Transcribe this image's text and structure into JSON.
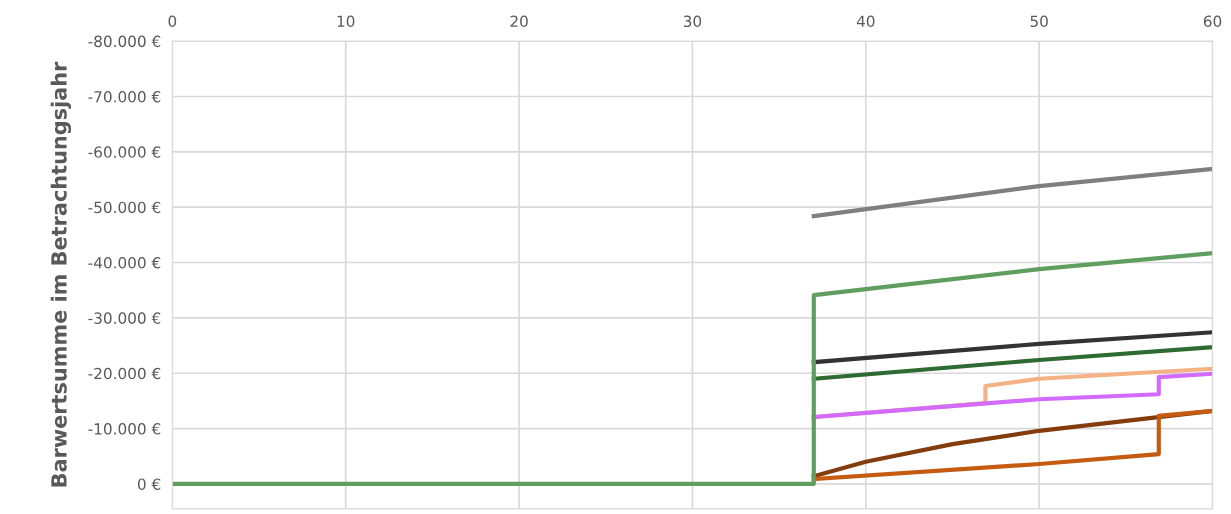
{
  "chart_data": {
    "type": "line",
    "ylabel": "Barwertsumme im Betrachtungsjahr",
    "xlim": [
      0,
      60
    ],
    "xticks": [
      0,
      10,
      20,
      30,
      40,
      50,
      60
    ],
    "ylim": [
      4500,
      -80000
    ],
    "yticks": [
      {
        "value": 0,
        "label": "0 €"
      },
      {
        "value": -10000,
        "label": "-10.000 €"
      },
      {
        "value": -20000,
        "label": "-20.000 €"
      },
      {
        "value": -30000,
        "label": "-30.000 €"
      },
      {
        "value": -40000,
        "label": "-40.000 €"
      },
      {
        "value": -50000,
        "label": "-50.000 €"
      },
      {
        "value": -60000,
        "label": "-60.000 €"
      },
      {
        "value": -70000,
        "label": "-70.000 €"
      },
      {
        "value": -80000,
        "label": "-80.000 €"
      }
    ],
    "grid": true,
    "line_style": "solid",
    "series": [
      {
        "color": "#7f7f7f",
        "x": [
          37,
          50,
          60
        ],
        "values": [
          -48400,
          -53800,
          -56900
        ]
      },
      {
        "color": "#333333",
        "x": [
          37,
          50,
          60
        ],
        "values": [
          -22000,
          -25300,
          -27400
        ]
      },
      {
        "color": "#2e6b33",
        "x": [
          37,
          50,
          60
        ],
        "values": [
          -19000,
          -22400,
          -24700
        ]
      },
      {
        "color": "#f4b183",
        "x": [
          37,
          46.9,
          46.9,
          50,
          60
        ],
        "values": [
          -12100,
          -14600,
          -17700,
          -19000,
          -20800
        ]
      },
      {
        "color": "#d36bff",
        "x": [
          37,
          50,
          56.9,
          56.9,
          60
        ],
        "values": [
          -12100,
          -15300,
          -16200,
          -19300,
          -19900
        ]
      },
      {
        "color": "#843c0c",
        "x": [
          37,
          40,
          45,
          50,
          55,
          60
        ],
        "values": [
          -1400,
          -4000,
          -7200,
          -9600,
          -11400,
          -13200
        ]
      },
      {
        "color": "#c55a11",
        "x": [
          37,
          50,
          56.9,
          56.9,
          60
        ],
        "values": [
          -900,
          -3600,
          -5400,
          -12300,
          -13200
        ]
      },
      {
        "color": "#5f9e5f",
        "x": [
          0,
          37,
          37,
          50,
          60
        ],
        "values": [
          0,
          0,
          -34100,
          -38800,
          -41700
        ]
      }
    ]
  }
}
